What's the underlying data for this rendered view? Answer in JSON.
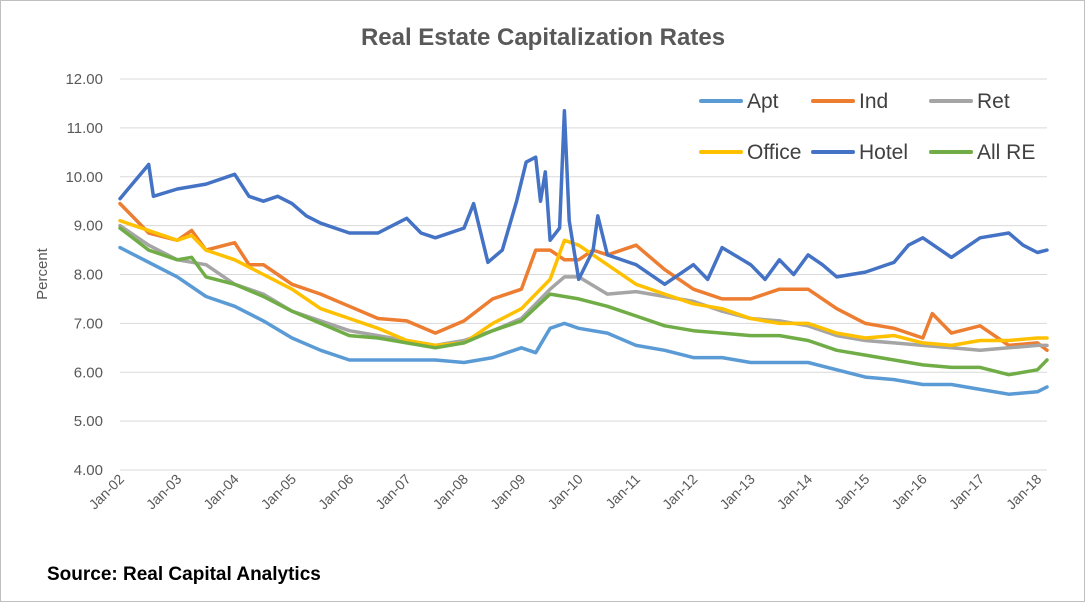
{
  "chart_data": {
    "type": "line",
    "title": "Real Estate Capitalization Rates",
    "ylabel": "Percent",
    "xlabel": "",
    "ylim": [
      4.0,
      12.0
    ],
    "yticks": [
      "4.00",
      "5.00",
      "6.00",
      "7.00",
      "8.00",
      "9.00",
      "10.00",
      "11.00",
      "12.00"
    ],
    "x_tick_labels": [
      "Jan-02",
      "Jan-03",
      "Jan-04",
      "Jan-05",
      "Jan-06",
      "Jan-07",
      "Jan-08",
      "Jan-09",
      "Jan-10",
      "Jan-11",
      "Jan-12",
      "Jan-13",
      "Jan-14",
      "Jan-15",
      "Jan-16",
      "Jan-17",
      "Jan-18"
    ],
    "grid": "horizontal",
    "legend_position": "top-right",
    "series": [
      {
        "name": "Apt",
        "color": "#5B9BD5",
        "points": [
          [
            "Jan-02",
            8.55
          ],
          [
            "Jul-02",
            8.25
          ],
          [
            "Jan-03",
            7.95
          ],
          [
            "Jul-03",
            7.55
          ],
          [
            "Jan-04",
            7.35
          ],
          [
            "Jul-04",
            7.05
          ],
          [
            "Jan-05",
            6.7
          ],
          [
            "Jul-05",
            6.45
          ],
          [
            "Jan-06",
            6.25
          ],
          [
            "Jul-06",
            6.25
          ],
          [
            "Jan-07",
            6.25
          ],
          [
            "Jul-07",
            6.25
          ],
          [
            "Jan-08",
            6.2
          ],
          [
            "Jul-08",
            6.3
          ],
          [
            "Jan-09",
            6.5
          ],
          [
            "Apr-09",
            6.4
          ],
          [
            "Jul-09",
            6.9
          ],
          [
            "Oct-09",
            7.0
          ],
          [
            "Jan-10",
            6.9
          ],
          [
            "Jul-10",
            6.8
          ],
          [
            "Jan-11",
            6.55
          ],
          [
            "Jul-11",
            6.45
          ],
          [
            "Jan-12",
            6.3
          ],
          [
            "Jul-12",
            6.3
          ],
          [
            "Jan-13",
            6.2
          ],
          [
            "Jul-13",
            6.2
          ],
          [
            "Jan-14",
            6.2
          ],
          [
            "Jul-14",
            6.05
          ],
          [
            "Jan-15",
            5.9
          ],
          [
            "Jul-15",
            5.85
          ],
          [
            "Jan-16",
            5.75
          ],
          [
            "Jul-16",
            5.75
          ],
          [
            "Jan-17",
            5.65
          ],
          [
            "Jul-17",
            5.55
          ],
          [
            "Jan-18",
            5.6
          ],
          [
            "Mar-18",
            5.7
          ]
        ]
      },
      {
        "name": "Ind",
        "color": "#ED7D31",
        "points": [
          [
            "Jan-02",
            9.45
          ],
          [
            "Jul-02",
            8.85
          ],
          [
            "Jan-03",
            8.7
          ],
          [
            "Apr-03",
            8.9
          ],
          [
            "Jul-03",
            8.5
          ],
          [
            "Jan-04",
            8.65
          ],
          [
            "Apr-04",
            8.2
          ],
          [
            "Jul-04",
            8.2
          ],
          [
            "Oct-04",
            8.0
          ],
          [
            "Jan-05",
            7.8
          ],
          [
            "Jul-05",
            7.6
          ],
          [
            "Jan-06",
            7.35
          ],
          [
            "Jul-06",
            7.1
          ],
          [
            "Jan-07",
            7.05
          ],
          [
            "Jul-07",
            6.8
          ],
          [
            "Jan-08",
            7.05
          ],
          [
            "Jul-08",
            7.5
          ],
          [
            "Jan-09",
            7.7
          ],
          [
            "Apr-09",
            8.5
          ],
          [
            "Jul-09",
            8.5
          ],
          [
            "Oct-09",
            8.3
          ],
          [
            "Jan-10",
            8.3
          ],
          [
            "Apr-10",
            8.5
          ],
          [
            "Jul-10",
            8.4
          ],
          [
            "Jan-11",
            8.6
          ],
          [
            "Jul-11",
            8.1
          ],
          [
            "Jan-12",
            7.7
          ],
          [
            "Jul-12",
            7.5
          ],
          [
            "Jan-13",
            7.5
          ],
          [
            "Jul-13",
            7.7
          ],
          [
            "Jan-14",
            7.7
          ],
          [
            "Jul-14",
            7.3
          ],
          [
            "Jan-15",
            7.0
          ],
          [
            "Jul-15",
            6.9
          ],
          [
            "Jan-16",
            6.7
          ],
          [
            "Mar-16",
            7.2
          ],
          [
            "Jul-16",
            6.8
          ],
          [
            "Jan-17",
            6.95
          ],
          [
            "Jul-17",
            6.55
          ],
          [
            "Jan-18",
            6.6
          ],
          [
            "Mar-18",
            6.45
          ]
        ]
      },
      {
        "name": "Ret",
        "color": "#A5A5A5",
        "points": [
          [
            "Jan-02",
            9.0
          ],
          [
            "Jul-02",
            8.6
          ],
          [
            "Jan-03",
            8.3
          ],
          [
            "Jul-03",
            8.2
          ],
          [
            "Jan-04",
            7.8
          ],
          [
            "Jul-04",
            7.6
          ],
          [
            "Jan-05",
            7.25
          ],
          [
            "Jul-05",
            7.05
          ],
          [
            "Jan-06",
            6.85
          ],
          [
            "Jul-06",
            6.75
          ],
          [
            "Jan-07",
            6.65
          ],
          [
            "Jul-07",
            6.55
          ],
          [
            "Jan-08",
            6.65
          ],
          [
            "Jul-08",
            6.85
          ],
          [
            "Jan-09",
            7.1
          ],
          [
            "Jul-09",
            7.7
          ],
          [
            "Oct-09",
            7.95
          ],
          [
            "Jan-10",
            7.95
          ],
          [
            "Jul-10",
            7.6
          ],
          [
            "Jan-11",
            7.65
          ],
          [
            "Jul-11",
            7.55
          ],
          [
            "Jan-12",
            7.45
          ],
          [
            "Jul-12",
            7.25
          ],
          [
            "Jan-13",
            7.1
          ],
          [
            "Jul-13",
            7.05
          ],
          [
            "Jan-14",
            6.95
          ],
          [
            "Jul-14",
            6.75
          ],
          [
            "Jan-15",
            6.65
          ],
          [
            "Jul-15",
            6.6
          ],
          [
            "Jan-16",
            6.55
          ],
          [
            "Jul-16",
            6.5
          ],
          [
            "Jan-17",
            6.45
          ],
          [
            "Jul-17",
            6.5
          ],
          [
            "Jan-18",
            6.55
          ],
          [
            "Mar-18",
            6.55
          ]
        ]
      },
      {
        "name": "Office",
        "color": "#FFC000",
        "points": [
          [
            "Jan-02",
            9.1
          ],
          [
            "Jul-02",
            8.9
          ],
          [
            "Jan-03",
            8.7
          ],
          [
            "Apr-03",
            8.8
          ],
          [
            "Jul-03",
            8.5
          ],
          [
            "Jan-04",
            8.3
          ],
          [
            "Jul-04",
            8.0
          ],
          [
            "Jan-05",
            7.7
          ],
          [
            "Jul-05",
            7.3
          ],
          [
            "Jan-06",
            7.1
          ],
          [
            "Jul-06",
            6.9
          ],
          [
            "Jan-07",
            6.65
          ],
          [
            "Jul-07",
            6.55
          ],
          [
            "Jan-08",
            6.6
          ],
          [
            "Jul-08",
            7.0
          ],
          [
            "Jan-09",
            7.3
          ],
          [
            "Jul-09",
            7.9
          ],
          [
            "Oct-09",
            8.7
          ],
          [
            "Jan-10",
            8.6
          ],
          [
            "Jul-10",
            8.2
          ],
          [
            "Jan-11",
            7.8
          ],
          [
            "Jul-11",
            7.6
          ],
          [
            "Jan-12",
            7.4
          ],
          [
            "Jul-12",
            7.3
          ],
          [
            "Jan-13",
            7.1
          ],
          [
            "Jul-13",
            7.0
          ],
          [
            "Jan-14",
            7.0
          ],
          [
            "Jul-14",
            6.8
          ],
          [
            "Jan-15",
            6.7
          ],
          [
            "Jul-15",
            6.75
          ],
          [
            "Jan-16",
            6.6
          ],
          [
            "Jul-16",
            6.55
          ],
          [
            "Jan-17",
            6.65
          ],
          [
            "Jul-17",
            6.65
          ],
          [
            "Jan-18",
            6.7
          ],
          [
            "Mar-18",
            6.7
          ]
        ]
      },
      {
        "name": "Hotel",
        "color": "#4472C4",
        "points": [
          [
            "Jan-02",
            9.55
          ],
          [
            "Apr-02",
            9.9
          ],
          [
            "Jul-02",
            10.25
          ],
          [
            "Aug-02",
            9.6
          ],
          [
            "Jan-03",
            9.75
          ],
          [
            "Jul-03",
            9.85
          ],
          [
            "Jan-04",
            10.05
          ],
          [
            "Apr-04",
            9.6
          ],
          [
            "Jul-04",
            9.5
          ],
          [
            "Oct-04",
            9.6
          ],
          [
            "Jan-05",
            9.45
          ],
          [
            "Apr-05",
            9.2
          ],
          [
            "Jul-05",
            9.05
          ],
          [
            "Jan-06",
            8.85
          ],
          [
            "Jul-06",
            8.85
          ],
          [
            "Jan-07",
            9.15
          ],
          [
            "Apr-07",
            8.85
          ],
          [
            "Jul-07",
            8.75
          ],
          [
            "Jan-08",
            8.95
          ],
          [
            "Mar-08",
            9.45
          ],
          [
            "Jun-08",
            8.25
          ],
          [
            "Sep-08",
            8.5
          ],
          [
            "Dec-08",
            9.5
          ],
          [
            "Feb-09",
            10.3
          ],
          [
            "Apr-09",
            10.4
          ],
          [
            "May-09",
            9.5
          ],
          [
            "Jun-09",
            10.1
          ],
          [
            "Jul-09",
            8.7
          ],
          [
            "Sep-09",
            8.95
          ],
          [
            "Oct-09",
            11.35
          ],
          [
            "Nov-09",
            9.1
          ],
          [
            "Jan-10",
            7.9
          ],
          [
            "Apr-10",
            8.5
          ],
          [
            "May-10",
            9.2
          ],
          [
            "Jul-10",
            8.4
          ],
          [
            "Jan-11",
            8.2
          ],
          [
            "Jul-11",
            7.8
          ],
          [
            "Jan-12",
            8.2
          ],
          [
            "Apr-12",
            7.9
          ],
          [
            "Jul-12",
            8.55
          ],
          [
            "Jan-13",
            8.2
          ],
          [
            "Apr-13",
            7.9
          ],
          [
            "Jul-13",
            8.3
          ],
          [
            "Oct-13",
            8.0
          ],
          [
            "Jan-14",
            8.4
          ],
          [
            "Apr-14",
            8.2
          ],
          [
            "Jul-14",
            7.95
          ],
          [
            "Jan-15",
            8.05
          ],
          [
            "Jul-15",
            8.25
          ],
          [
            "Oct-15",
            8.6
          ],
          [
            "Jan-16",
            8.75
          ],
          [
            "Jul-16",
            8.35
          ],
          [
            "Jan-17",
            8.75
          ],
          [
            "Jul-17",
            8.85
          ],
          [
            "Oct-17",
            8.6
          ],
          [
            "Jan-18",
            8.45
          ],
          [
            "Mar-18",
            8.5
          ]
        ]
      },
      {
        "name": "All RE",
        "color": "#70AD47",
        "points": [
          [
            "Jan-02",
            8.95
          ],
          [
            "Jul-02",
            8.5
          ],
          [
            "Jan-03",
            8.3
          ],
          [
            "Apr-03",
            8.35
          ],
          [
            "Jul-03",
            7.95
          ],
          [
            "Jan-04",
            7.8
          ],
          [
            "Jul-04",
            7.55
          ],
          [
            "Jan-05",
            7.25
          ],
          [
            "Jul-05",
            7.0
          ],
          [
            "Jan-06",
            6.75
          ],
          [
            "Jul-06",
            6.7
          ],
          [
            "Jan-07",
            6.6
          ],
          [
            "Jul-07",
            6.5
          ],
          [
            "Jan-08",
            6.6
          ],
          [
            "Jul-08",
            6.85
          ],
          [
            "Jan-09",
            7.05
          ],
          [
            "Jul-09",
            7.6
          ],
          [
            "Jan-10",
            7.5
          ],
          [
            "Jul-10",
            7.35
          ],
          [
            "Jan-11",
            7.15
          ],
          [
            "Jul-11",
            6.95
          ],
          [
            "Jan-12",
            6.85
          ],
          [
            "Jul-12",
            6.8
          ],
          [
            "Jan-13",
            6.75
          ],
          [
            "Jul-13",
            6.75
          ],
          [
            "Jan-14",
            6.65
          ],
          [
            "Jul-14",
            6.45
          ],
          [
            "Jan-15",
            6.35
          ],
          [
            "Jul-15",
            6.25
          ],
          [
            "Jan-16",
            6.15
          ],
          [
            "Jul-16",
            6.1
          ],
          [
            "Jan-17",
            6.1
          ],
          [
            "Jul-17",
            5.95
          ],
          [
            "Jan-18",
            6.05
          ],
          [
            "Mar-18",
            6.25
          ]
        ]
      }
    ]
  },
  "footer": {
    "source": "Source: Real Capital Analytics"
  }
}
